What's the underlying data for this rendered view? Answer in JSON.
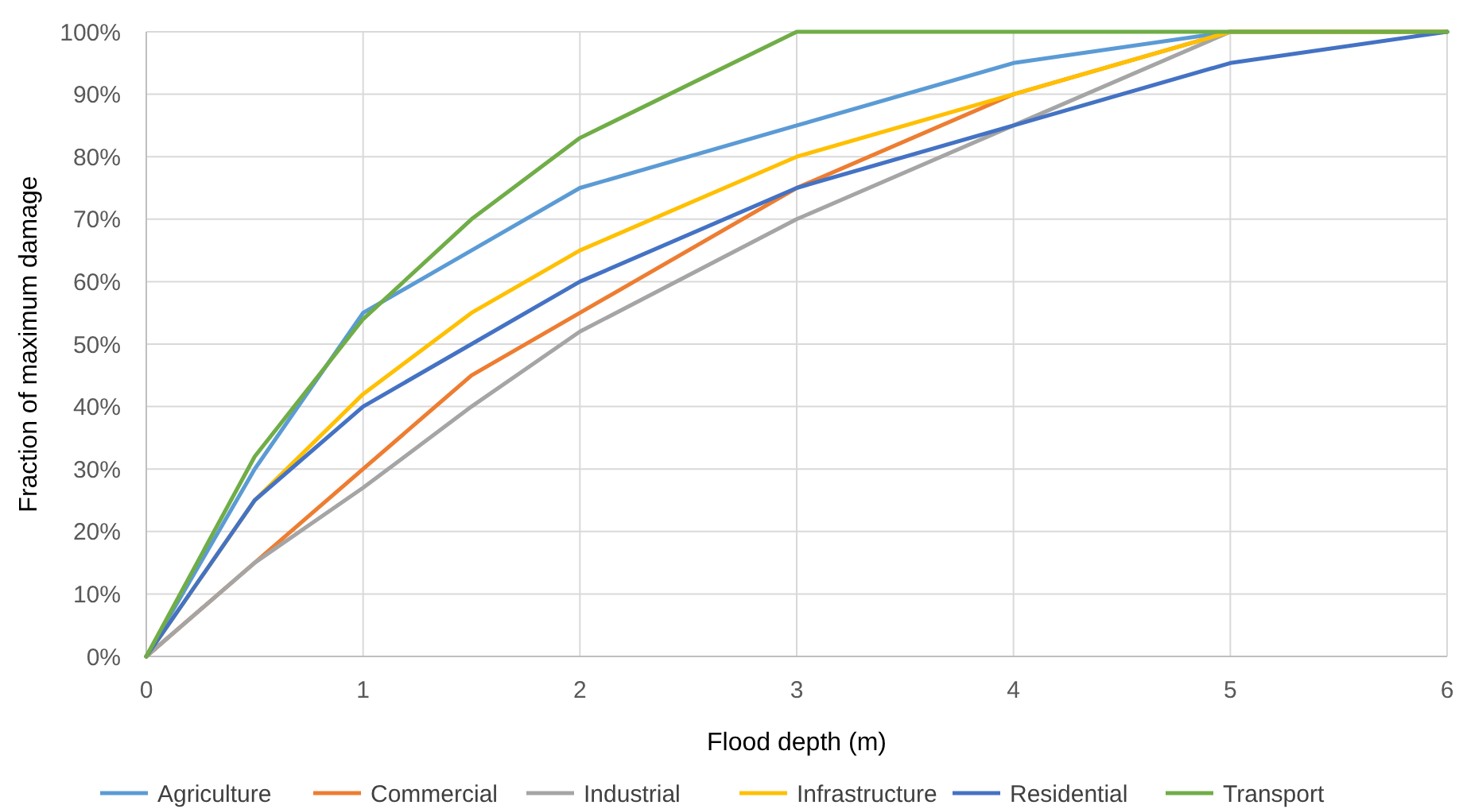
{
  "chart_data": {
    "type": "line",
    "xlabel": "Flood depth (m)",
    "ylabel": "Fraction of maximum damage",
    "x": [
      0,
      0.5,
      1,
      1.5,
      2,
      3,
      4,
      5,
      6
    ],
    "series": [
      {
        "name": "Agriculture",
        "color": "#5b9bd5",
        "values": [
          0,
          30,
          55,
          65,
          75,
          85,
          95,
          100,
          100
        ]
      },
      {
        "name": "Commercial",
        "color": "#ed7d31",
        "values": [
          0,
          15,
          30,
          45,
          55,
          75,
          90,
          100,
          100
        ]
      },
      {
        "name": "Industrial",
        "color": "#a5a5a5",
        "values": [
          0,
          15,
          27,
          40,
          52,
          70,
          85,
          100,
          100
        ]
      },
      {
        "name": "Infrastructure",
        "color": "#ffc000",
        "values": [
          0,
          25,
          42,
          55,
          65,
          80,
          90,
          100,
          100
        ]
      },
      {
        "name": "Residential",
        "color": "#4472c4",
        "values": [
          0,
          25,
          40,
          50,
          60,
          75,
          85,
          95,
          100
        ]
      },
      {
        "name": "Transport",
        "color": "#70ad47",
        "values": [
          0,
          32,
          54,
          70,
          83,
          100,
          100,
          100,
          100
        ]
      }
    ],
    "xlim": [
      0,
      6
    ],
    "xticks": [
      0,
      1,
      2,
      3,
      4,
      5,
      6
    ],
    "ylim": [
      0,
      100
    ],
    "yticks": [
      {
        "value": 0,
        "label": "0%"
      },
      {
        "value": 10,
        "label": "10%"
      },
      {
        "value": 20,
        "label": "20%"
      },
      {
        "value": 30,
        "label": "30%"
      },
      {
        "value": 40,
        "label": "40%"
      },
      {
        "value": 50,
        "label": "50%"
      },
      {
        "value": 60,
        "label": "60%"
      },
      {
        "value": 70,
        "label": "70%"
      },
      {
        "value": 80,
        "label": "80%"
      },
      {
        "value": 90,
        "label": "90%"
      },
      {
        "value": 100,
        "label": "100%"
      }
    ],
    "grid": true,
    "legend": "bottom",
    "marker": "none",
    "line_style": "solid"
  }
}
